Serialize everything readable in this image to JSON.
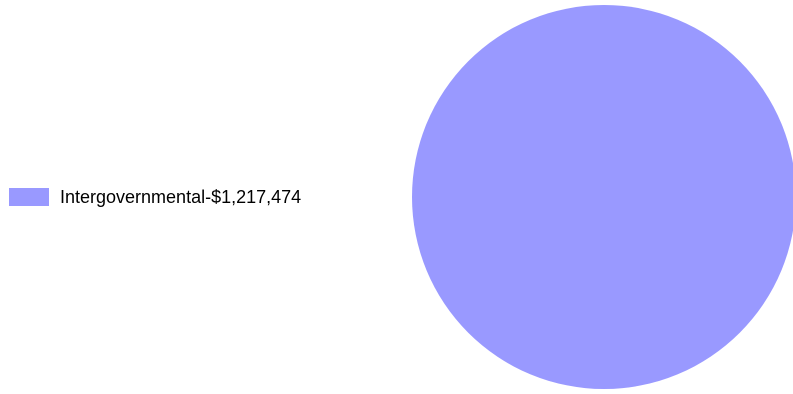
{
  "chart_data": {
    "type": "pie",
    "slices": [
      {
        "label": "Intergovernmental-$1,217,474",
        "value": 1217474,
        "color": "#9999ff"
      }
    ],
    "legend_position": "left"
  }
}
